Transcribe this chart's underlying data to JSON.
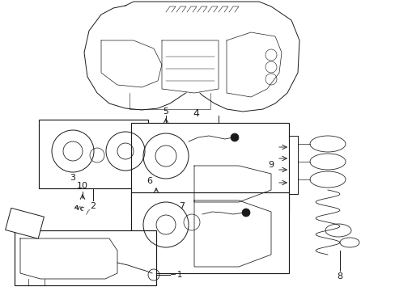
{
  "bg_color": "#ffffff",
  "lc": "#1a1a1a",
  "lw": 0.7,
  "fig_w": 4.89,
  "fig_h": 3.6,
  "dpi": 100
}
